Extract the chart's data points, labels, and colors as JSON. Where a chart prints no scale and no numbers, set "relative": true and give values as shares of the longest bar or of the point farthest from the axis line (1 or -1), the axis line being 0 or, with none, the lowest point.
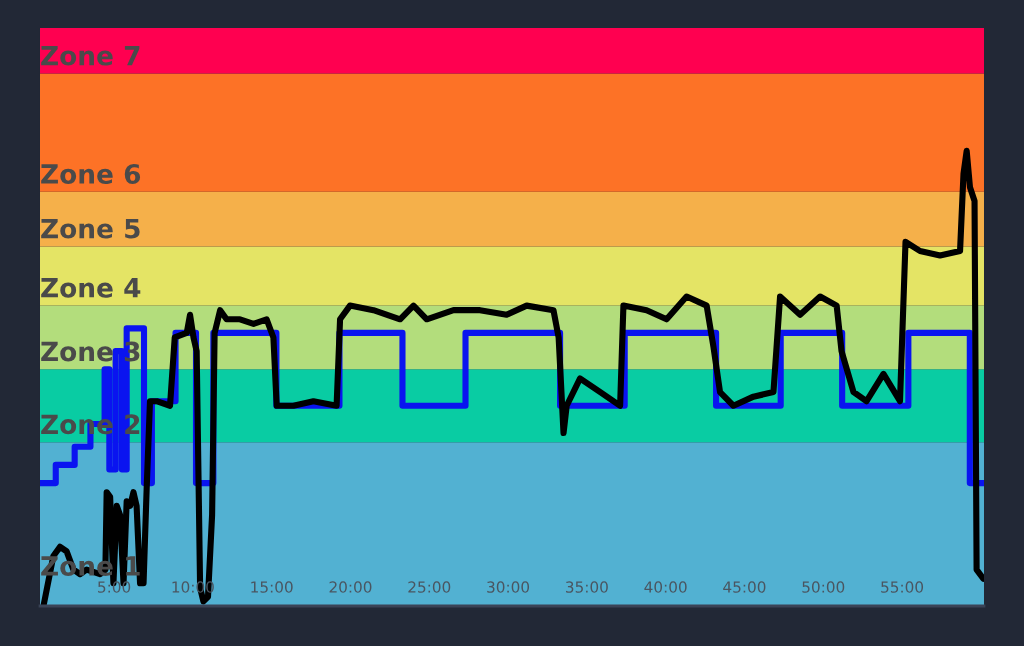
{
  "chart_data": {
    "type": "line",
    "relative": true,
    "xlim": [
      0.3,
      60.2
    ],
    "xticks": [
      {
        "value": 5,
        "label": "5:00"
      },
      {
        "value": 10,
        "label": "10:00"
      },
      {
        "value": 15,
        "label": "15:00"
      },
      {
        "value": 20,
        "label": "20:00"
      },
      {
        "value": 25,
        "label": "25:00"
      },
      {
        "value": 30,
        "label": "30:00"
      },
      {
        "value": 35,
        "label": "35:00"
      },
      {
        "value": 40,
        "label": "40:00"
      },
      {
        "value": 45,
        "label": "45:00"
      },
      {
        "value": 50,
        "label": "50:00"
      },
      {
        "value": 55,
        "label": "55:00"
      }
    ],
    "tick_labels": "x",
    "grid": false,
    "legend": false,
    "bands": [
      {
        "axis": "y",
        "from": 0,
        "to": 0.36,
        "label": "Zone 1",
        "color": "#52b1d2"
      },
      {
        "axis": "y",
        "from": 0.36,
        "to": 0.52,
        "label": "Zone 2",
        "color": "#09cca3"
      },
      {
        "axis": "y",
        "from": 0.52,
        "to": 0.66,
        "label": "Zone 3",
        "color": "#b3dd7c"
      },
      {
        "axis": "y",
        "from": 0.66,
        "to": 0.79,
        "label": "Zone 4",
        "color": "#e4e465"
      },
      {
        "axis": "y",
        "from": 0.79,
        "to": 0.91,
        "label": "Zone 5",
        "color": "#f5b04a"
      },
      {
        "axis": "y",
        "from": 0.91,
        "to": 1.17,
        "label": "Zone 6",
        "color": "#fd7226"
      },
      {
        "axis": "y",
        "from": 1.17,
        "to": 1.27,
        "label": "Zone 7",
        "color": "#ff0050"
      }
    ],
    "series": [
      {
        "type": "step",
        "color": "#0a14f0",
        "x": [
          0.3,
          1.3,
          2.5,
          3.5,
          4.4,
          4.7,
          5.1,
          5.5,
          5.8,
          6.9,
          7.4,
          8.9,
          10.2,
          11.3,
          15.3,
          19.3,
          23.3,
          27.3,
          33.3,
          37.4,
          43.2,
          47.3,
          51.2,
          55.4,
          59.3,
          60.2
        ],
        "values": [
          0.27,
          0.31,
          0.35,
          0.4,
          0.52,
          0.3,
          0.56,
          0.3,
          0.61,
          0.27,
          0.45,
          0.6,
          0.27,
          0.6,
          0.44,
          0.6,
          0.44,
          0.6,
          0.44,
          0.6,
          0.44,
          0.6,
          0.44,
          0.6,
          0.27,
          0.27
        ]
      },
      {
        "color": "#000000",
        "x": [
          0.52,
          1.15,
          1.57,
          1.99,
          2.42,
          2.84,
          3.26,
          4.11,
          4.45,
          4.53,
          4.75,
          4.96,
          5.17,
          5.38,
          5.6,
          5.8,
          6.02,
          6.23,
          6.43,
          6.65,
          6.87,
          7.07,
          7.28,
          7.7,
          8.55,
          8.85,
          9.61,
          9.82,
          10.04,
          10.24,
          10.46,
          10.67,
          10.96,
          11.22,
          11.38,
          11.73,
          12.14,
          12.99,
          13.85,
          14.68,
          15.11,
          15.32,
          16.38,
          17.65,
          19.12,
          19.34,
          19.97,
          21.46,
          23.15,
          24.0,
          24.84,
          26.54,
          28.22,
          29.91,
          31.18,
          32.88,
          33.21,
          33.52,
          33.72,
          34.57,
          35.84,
          37.11,
          37.32,
          38.79,
          40.06,
          41.33,
          42.6,
          43.03,
          43.45,
          44.3,
          45.57,
          46.84,
          47.26,
          48.53,
          49.8,
          50.85,
          51.16,
          51.92,
          52.75,
          53.82,
          54.87,
          55.22,
          56.14,
          57.41,
          58.68,
          58.9,
          59.1,
          59.31,
          59.6,
          59.73,
          60.16
        ],
        "values": [
          0.0,
          0.11,
          0.13,
          0.12,
          0.08,
          0.07,
          0.08,
          0.07,
          0.08,
          0.25,
          0.24,
          0.05,
          0.22,
          0.2,
          0.05,
          0.23,
          0.22,
          0.25,
          0.22,
          0.05,
          0.05,
          0.26,
          0.45,
          0.45,
          0.44,
          0.59,
          0.6,
          0.64,
          0.59,
          0.56,
          0.04,
          0.01,
          0.02,
          0.2,
          0.6,
          0.65,
          0.63,
          0.63,
          0.62,
          0.63,
          0.59,
          0.44,
          0.44,
          0.45,
          0.44,
          0.63,
          0.66,
          0.65,
          0.63,
          0.66,
          0.63,
          0.65,
          0.65,
          0.64,
          0.66,
          0.65,
          0.59,
          0.38,
          0.44,
          0.5,
          0.47,
          0.44,
          0.66,
          0.65,
          0.63,
          0.68,
          0.66,
          0.57,
          0.47,
          0.44,
          0.46,
          0.47,
          0.68,
          0.64,
          0.68,
          0.66,
          0.56,
          0.47,
          0.45,
          0.51,
          0.45,
          0.8,
          0.78,
          0.77,
          0.78,
          0.95,
          1.0,
          0.92,
          0.89,
          0.08,
          0.06
        ]
      }
    ]
  }
}
